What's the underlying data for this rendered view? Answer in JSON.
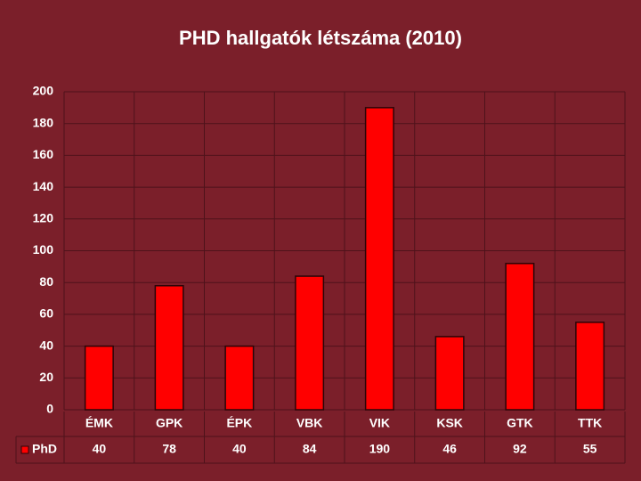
{
  "chart_data": {
    "type": "bar",
    "title": "PHD hallgatók létszáma (2010)",
    "categories": [
      "ÉMK",
      "GPK",
      "ÉPK",
      "VBK",
      "VIK",
      "KSK",
      "GTK",
      "TTK"
    ],
    "series": [
      {
        "name": "PhD",
        "color": "#ff0000",
        "values": [
          40,
          78,
          40,
          84,
          190,
          46,
          92,
          55
        ]
      }
    ],
    "ylim": [
      0,
      200
    ],
    "yticks": [
      0,
      20,
      40,
      60,
      80,
      100,
      120,
      140,
      160,
      180,
      200
    ],
    "grid": true,
    "data_table": true
  }
}
